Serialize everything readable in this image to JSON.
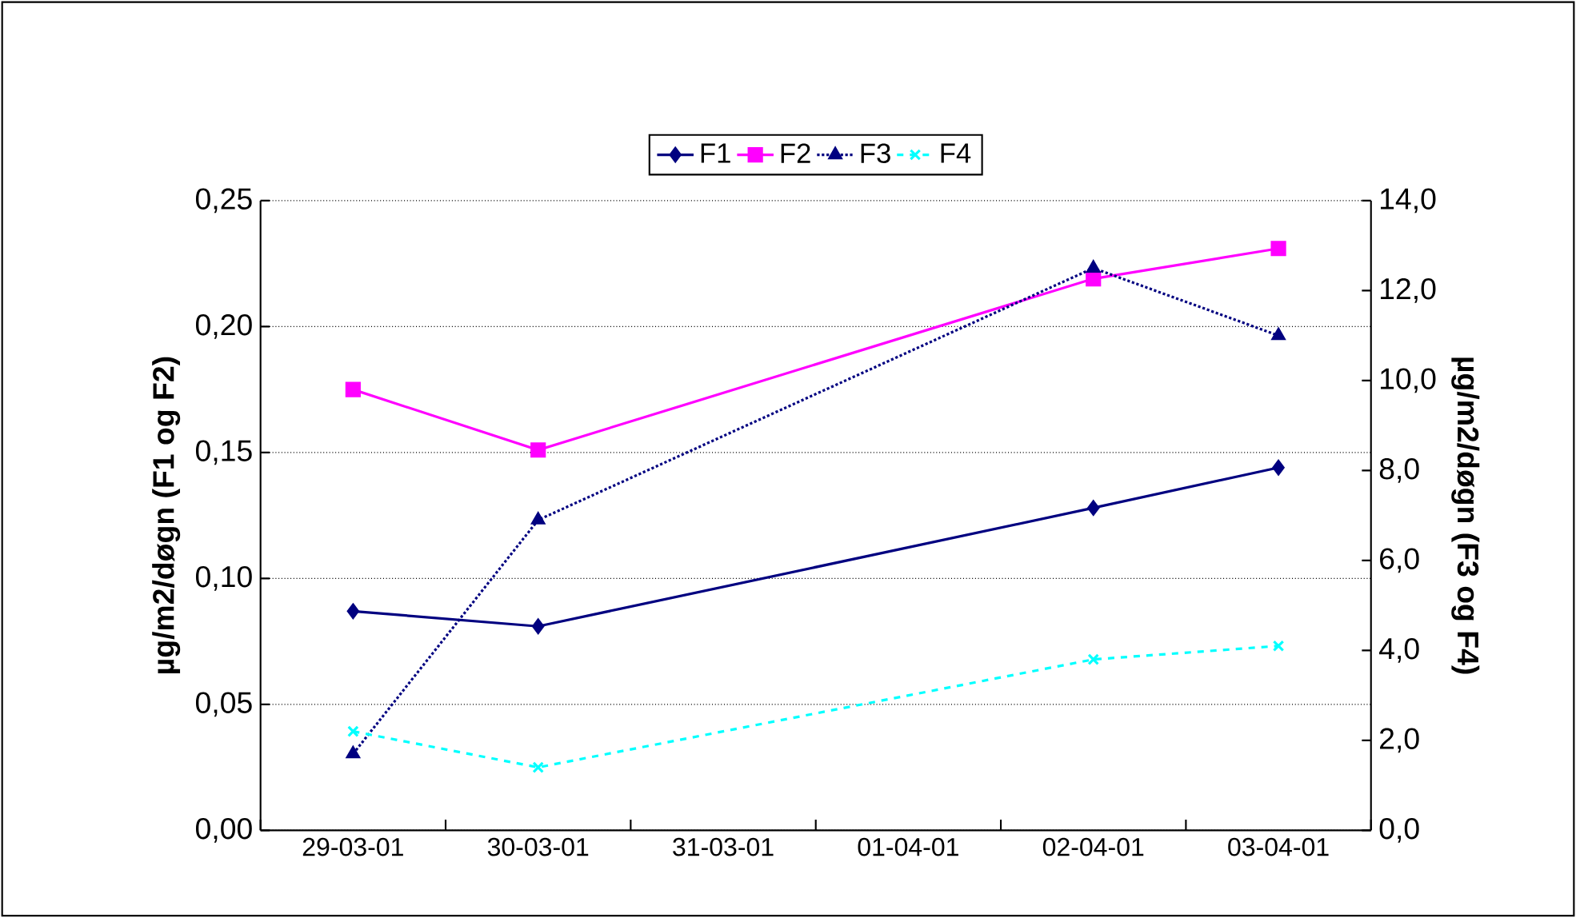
{
  "chart_data": {
    "type": "line",
    "categories": [
      "29-03-01",
      "30-03-01",
      "31-03-01",
      "01-04-01",
      "02-04-01",
      "03-04-01"
    ],
    "ylabel": "µg/m2/døgn (F1 og F2)",
    "y2label": "µg/m2/døgn (F3 og F4)",
    "ylim": [
      0,
      0.25
    ],
    "yticks": [
      {
        "value": 0,
        "label": "0,00"
      },
      {
        "value": 0.05,
        "label": "0,05"
      },
      {
        "value": 0.1,
        "label": "0,10"
      },
      {
        "value": 0.15,
        "label": "0,15"
      },
      {
        "value": 0.2,
        "label": "0,20"
      },
      {
        "value": 0.25,
        "label": "0,25"
      }
    ],
    "y2lim": [
      0,
      14
    ],
    "y2ticks": [
      {
        "value": 0,
        "label": "0,0"
      },
      {
        "value": 2,
        "label": "2,0"
      },
      {
        "value": 4,
        "label": "4,0"
      },
      {
        "value": 6,
        "label": "6,0"
      },
      {
        "value": 8,
        "label": "8,0"
      },
      {
        "value": 10,
        "label": "10,0"
      },
      {
        "value": 12,
        "label": "12,0"
      },
      {
        "value": 14,
        "label": "14,0"
      }
    ],
    "grid": "y",
    "legend": "top",
    "series": [
      {
        "name": "F1",
        "color": "#000080",
        "marker": "diamond",
        "line_style": "solid",
        "values": [
          0.087,
          0.081,
          null,
          null,
          0.128,
          0.144
        ]
      },
      {
        "name": "F2",
        "color": "#ff00ff",
        "marker": "square",
        "line_style": "solid",
        "values": [
          0.175,
          0.151,
          null,
          null,
          0.219,
          0.231
        ]
      },
      {
        "name": "F3",
        "color": "#000080",
        "marker": "triangle",
        "line_style": "dotted",
        "axis": "y2",
        "values": [
          1.7,
          6.9,
          null,
          null,
          12.5,
          11.0
        ]
      },
      {
        "name": "F4",
        "color": "#00ffff",
        "marker": "cross",
        "line_style": "dashed",
        "axis": "y2",
        "values": [
          2.2,
          1.4,
          null,
          null,
          3.8,
          4.1
        ]
      }
    ]
  }
}
